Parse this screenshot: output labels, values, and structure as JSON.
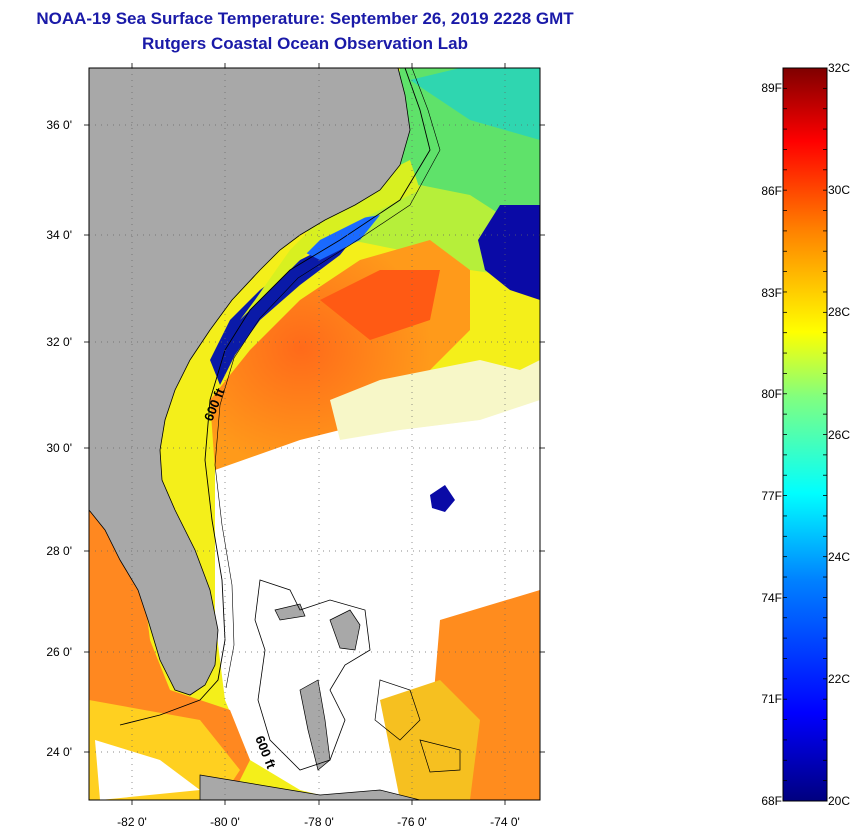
{
  "header": {
    "title_line1": "NOAA-19 Sea Surface Temperature:  September 26, 2019 2228 GMT",
    "title_line2": "Rutgers Coastal Ocean Observation Lab"
  },
  "axes": {
    "lat_labels": [
      "36 0'",
      "34 0'",
      "32 0'",
      "30 0'",
      "28 0'",
      "26 0'",
      "24 0'"
    ],
    "lon_labels": [
      "-82 0'",
      "-80 0'",
      "-78 0'",
      "-76 0'",
      "-74 0'"
    ]
  },
  "isobath_labels": [
    "600 ft",
    "600 ft"
  ],
  "colorbar": {
    "fahrenheit_labels": [
      "89F",
      "86F",
      "83F",
      "80F",
      "77F",
      "74F",
      "71F",
      "68F"
    ],
    "celsius_labels": [
      "32C",
      "30C",
      "28C",
      "26C",
      "24C",
      "22C",
      "20C"
    ],
    "min_c": 20,
    "max_c": 32,
    "colors": [
      "#00007f",
      "#0000ff",
      "#0080ff",
      "#00ffff",
      "#80ff80",
      "#ffff00",
      "#ff8000",
      "#ff0000",
      "#7f0000"
    ]
  },
  "colors": {
    "land": "#a8a8a8",
    "cloud": "#ffffff",
    "title": "#1a1aa8"
  }
}
